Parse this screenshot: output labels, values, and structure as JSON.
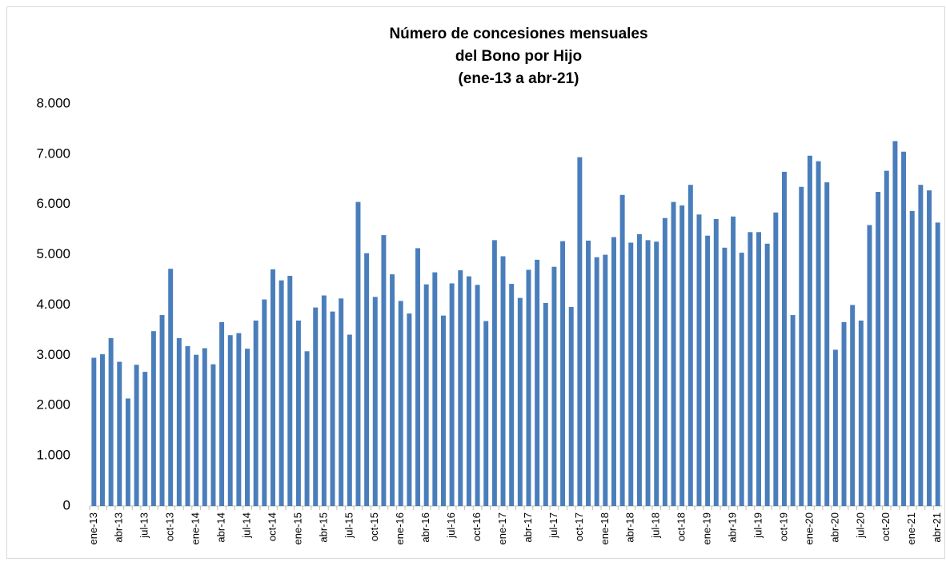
{
  "chart_data": {
    "type": "bar",
    "title": [
      "Número de concesiones mensuales",
      "del Bono por Hijo",
      "(ene-13 a abr-21)"
    ],
    "categories": [
      "ene-13",
      null,
      null,
      "abr-13",
      null,
      null,
      "jul-13",
      null,
      null,
      "oct-13",
      null,
      null,
      "ene-14",
      null,
      null,
      "abr-14",
      null,
      null,
      "jul-14",
      null,
      null,
      "oct-14",
      null,
      null,
      "ene-15",
      null,
      null,
      "abr-15",
      null,
      null,
      "jul-15",
      null,
      null,
      "oct-15",
      null,
      null,
      "ene-16",
      null,
      null,
      "abr-16",
      null,
      null,
      "jul-16",
      null,
      null,
      "oct-16",
      null,
      null,
      "ene-17",
      null,
      null,
      "abr-17",
      null,
      null,
      "jul-17",
      null,
      null,
      "oct-17",
      null,
      null,
      "ene-18",
      null,
      null,
      "abr-18",
      null,
      null,
      "jul-18",
      null,
      null,
      "oct-18",
      null,
      null,
      "ene-19",
      null,
      null,
      "abr-19",
      null,
      null,
      "jul-19",
      null,
      null,
      "oct-19",
      null,
      null,
      "ene-20",
      null,
      null,
      "abr-20",
      null,
      null,
      "jul-20",
      null,
      null,
      "oct-20",
      null,
      null,
      "ene-21",
      null,
      null,
      "abr-21"
    ],
    "values": [
      2950,
      3020,
      3340,
      2870,
      2140,
      2810,
      2670,
      3480,
      3800,
      4720,
      3340,
      3180,
      3010,
      3140,
      2820,
      3660,
      3400,
      3440,
      3130,
      3690,
      4110,
      4710,
      4490,
      4580,
      3690,
      3080,
      3950,
      4190,
      3870,
      4130,
      3410,
      6050,
      5030,
      4160,
      5390,
      4610,
      4080,
      3830,
      5130,
      4410,
      4650,
      3790,
      4430,
      4690,
      4570,
      4400,
      3680,
      5290,
      4970,
      4420,
      4140,
      4700,
      4900,
      4040,
      4760,
      5270,
      3960,
      6940,
      5280,
      4950,
      5000,
      5350,
      6190,
      5240,
      5410,
      5290,
      5260,
      5730,
      6050,
      5980,
      6390,
      5800,
      5380,
      5710,
      5140,
      5760,
      5040,
      5450,
      5450,
      5220,
      5840,
      6650,
      3800,
      6350,
      6970,
      6860,
      6440,
      3110,
      3660,
      4000,
      3690,
      5590,
      6250,
      6670,
      7260,
      7050,
      5870,
      6390,
      6280,
      5640
    ],
    "color": "#4a7ebb",
    "ylim": [
      0,
      8000
    ],
    "yticks": [
      0,
      {
        "value": 1000,
        "label": "1.000"
      },
      {
        "value": 2000,
        "label": "2.000"
      },
      {
        "value": 3000,
        "label": "3.000"
      },
      {
        "value": 4000,
        "label": "4.000"
      },
      {
        "value": 5000,
        "label": "5.000"
      },
      {
        "value": 6000,
        "label": "6.000"
      },
      {
        "value": 7000,
        "label": "7.000"
      },
      {
        "value": 8000,
        "label": "8.000"
      }
    ],
    "grid": false
  }
}
